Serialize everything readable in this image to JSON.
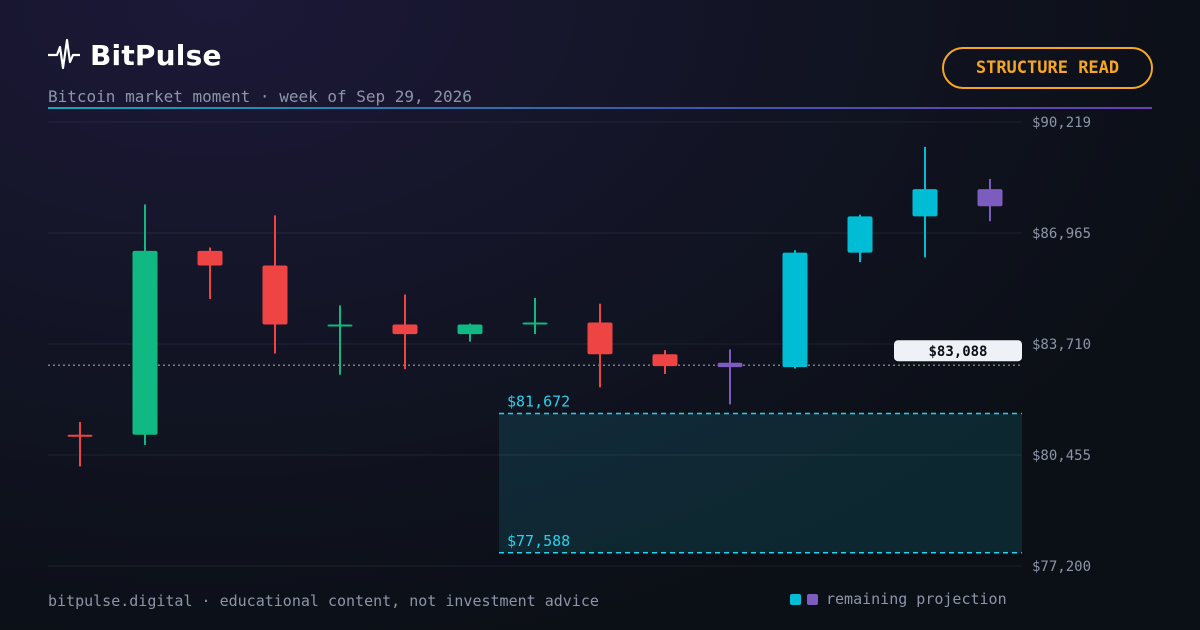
{
  "brand": {
    "name": "BitPulse",
    "logo_icon": "pulse-icon"
  },
  "subtitle": "Bitcoin market moment · week of Sep 29, 2026",
  "badge": "STRUCTURE READ",
  "footer": "bitpulse.digital · educational content, not investment advice",
  "legend": {
    "label": "remaining projection",
    "colors": [
      "#00bcd4",
      "#7c5cbf"
    ]
  },
  "colors": {
    "up": "#10b981",
    "down": "#ef4444",
    "projection": "#00bcd4",
    "projection_alt": "#7c5cbf",
    "zone": "#22d3ee",
    "accent": "#f5a623"
  },
  "chart_data": {
    "type": "candlestick",
    "y_ticks": [
      "$90,219",
      "$86,965",
      "$83,710",
      "$80,455",
      "$77,200"
    ],
    "ylim": [
      77200,
      90219
    ],
    "grid": true,
    "current_price": {
      "value": 83088,
      "label": "$83,088"
    },
    "zone": {
      "upper": 81672,
      "upper_label": "$81,672",
      "lower": 77588,
      "lower_label": "$77,588",
      "start_index": 7
    },
    "candles": [
      {
        "o": 81050,
        "h": 81420,
        "l": 80120,
        "c": 81050,
        "color": "down"
      },
      {
        "o": 81050,
        "h": 87800,
        "l": 80750,
        "c": 86440,
        "color": "up"
      },
      {
        "o": 86440,
        "h": 86540,
        "l": 85030,
        "c": 86010,
        "color": "down"
      },
      {
        "o": 86010,
        "h": 87480,
        "l": 83430,
        "c": 84280,
        "color": "down"
      },
      {
        "o": 84280,
        "h": 84840,
        "l": 82810,
        "c": 84280,
        "color": "up"
      },
      {
        "o": 84280,
        "h": 85160,
        "l": 82970,
        "c": 84000,
        "color": "down"
      },
      {
        "o": 84000,
        "h": 84310,
        "l": 83780,
        "c": 84280,
        "color": "up"
      },
      {
        "o": 84280,
        "h": 85060,
        "l": 84000,
        "c": 84340,
        "color": "up"
      },
      {
        "o": 84340,
        "h": 84890,
        "l": 82440,
        "c": 83410,
        "color": "down"
      },
      {
        "o": 83410,
        "h": 83530,
        "l": 82830,
        "c": 83060,
        "color": "down"
      },
      {
        "o": 83030,
        "h": 83550,
        "l": 81940,
        "c": 83160,
        "color": "projection_alt"
      },
      {
        "o": 83030,
        "h": 86460,
        "l": 82990,
        "c": 86390,
        "color": "projection"
      },
      {
        "o": 86390,
        "h": 87500,
        "l": 86110,
        "c": 87450,
        "color": "projection"
      },
      {
        "o": 87450,
        "h": 89490,
        "l": 86250,
        "c": 88250,
        "color": "projection"
      },
      {
        "o": 88250,
        "h": 88550,
        "l": 87310,
        "c": 87750,
        "color": "projection_alt"
      }
    ]
  }
}
